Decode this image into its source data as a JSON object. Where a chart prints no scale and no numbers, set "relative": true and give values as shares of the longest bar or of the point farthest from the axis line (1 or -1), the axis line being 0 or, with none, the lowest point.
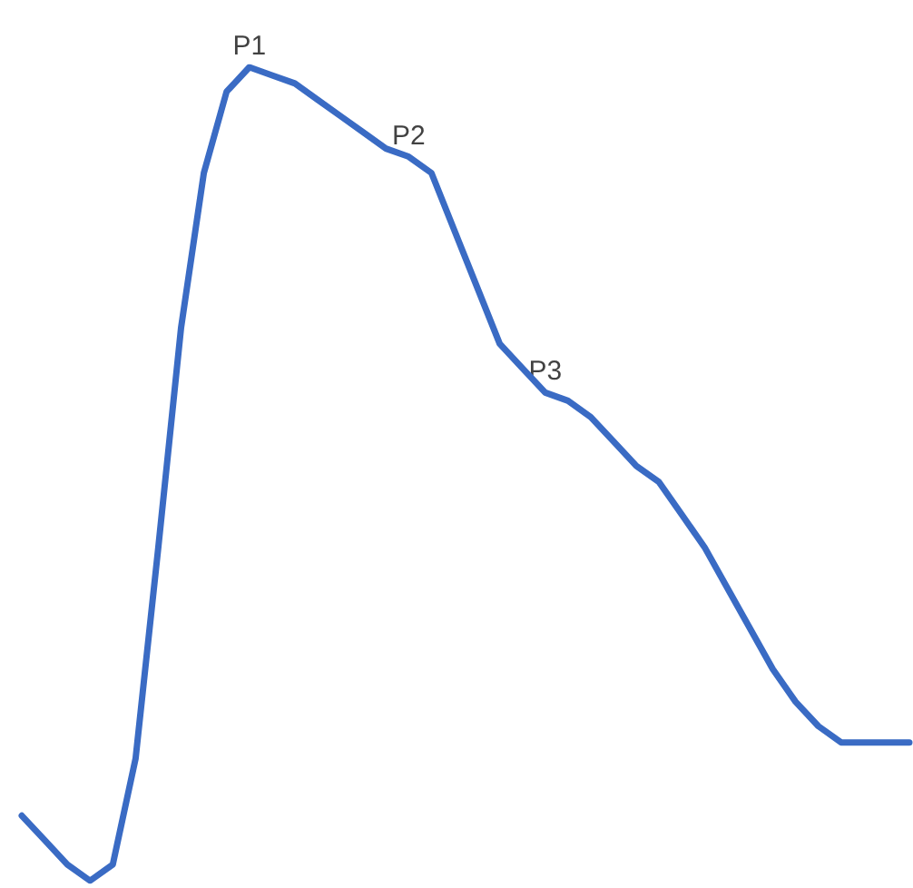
{
  "chart_data": {
    "type": "line",
    "relative": true,
    "marker": "none",
    "line_style": "solid",
    "categories": [
      null,
      null,
      null,
      null,
      null,
      null,
      null,
      null,
      null,
      null,
      null,
      null,
      null,
      null,
      null,
      null,
      null,
      null,
      null,
      null,
      null,
      null,
      null,
      null,
      null,
      null,
      null,
      null,
      null,
      null,
      null,
      null,
      null,
      null,
      null,
      null,
      null,
      null,
      null,
      null
    ],
    "series": [
      {
        "color": "#3a6bc4",
        "values": [
          0.08,
          0.05,
          0.02,
          0,
          0.02,
          0.15,
          0.41,
          0.68,
          0.87,
          0.97,
          1.0,
          0.99,
          0.98,
          0.96,
          0.94,
          0.92,
          0.9,
          0.89,
          0.87,
          0.8,
          0.73,
          0.66,
          0.63,
          0.6,
          0.59,
          0.57,
          0.54,
          0.51,
          0.49,
          0.45,
          0.41,
          0.36,
          0.31,
          0.26,
          0.22,
          0.19,
          0.17,
          0.17,
          0.17,
          0.17
        ]
      }
    ],
    "annotations": [
      {
        "text": "P1",
        "y": 1.0
      },
      {
        "text": "P2",
        "y": 0.89
      },
      {
        "text": "P3",
        "y": 0.6
      }
    ]
  }
}
